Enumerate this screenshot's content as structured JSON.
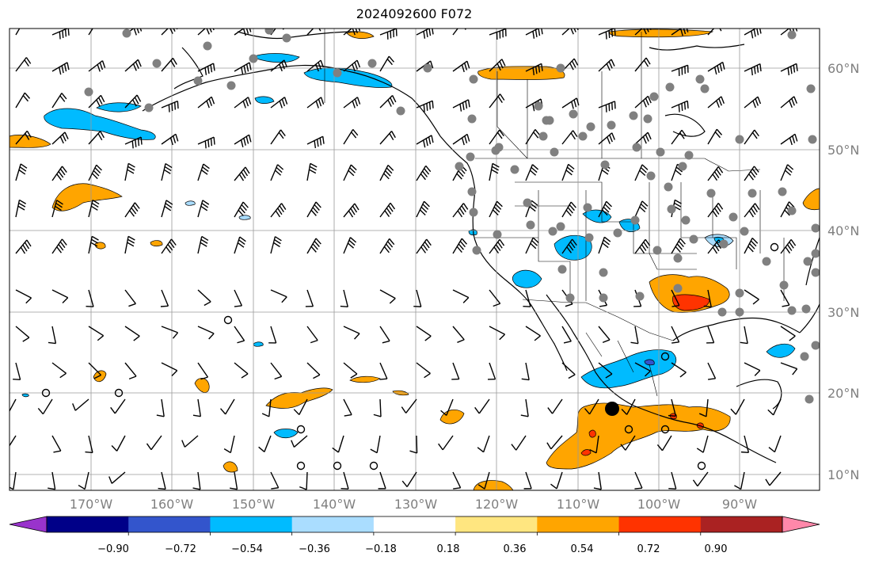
{
  "title": "2024092600 F072",
  "lat_labels": [
    "60°N",
    "50°N",
    "40°N",
    "30°N",
    "20°N",
    "10°N"
  ],
  "lon_labels": [
    "170°W",
    "160°W",
    "150°W",
    "140°W",
    "130°W",
    "120°W",
    "110°W",
    "100°W",
    "90°W"
  ],
  "colorbar": {
    "ticks": [
      "−0.90",
      "−0.72",
      "−0.54",
      "−0.36",
      "−0.18",
      "0.18",
      "0.36",
      "0.54",
      "0.72",
      "0.90"
    ],
    "colors": [
      "#9933cc",
      "#000088",
      "#3355cc",
      "#00bbff",
      "#aaddff",
      "#ffffff",
      "#ffe680",
      "#ffa500",
      "#ff3300",
      "#aa2222",
      "#ff88aa"
    ]
  },
  "legend_colors": {
    "land_station": "#808080",
    "open_marker": "#000000",
    "storm_marker": "#000000"
  }
}
